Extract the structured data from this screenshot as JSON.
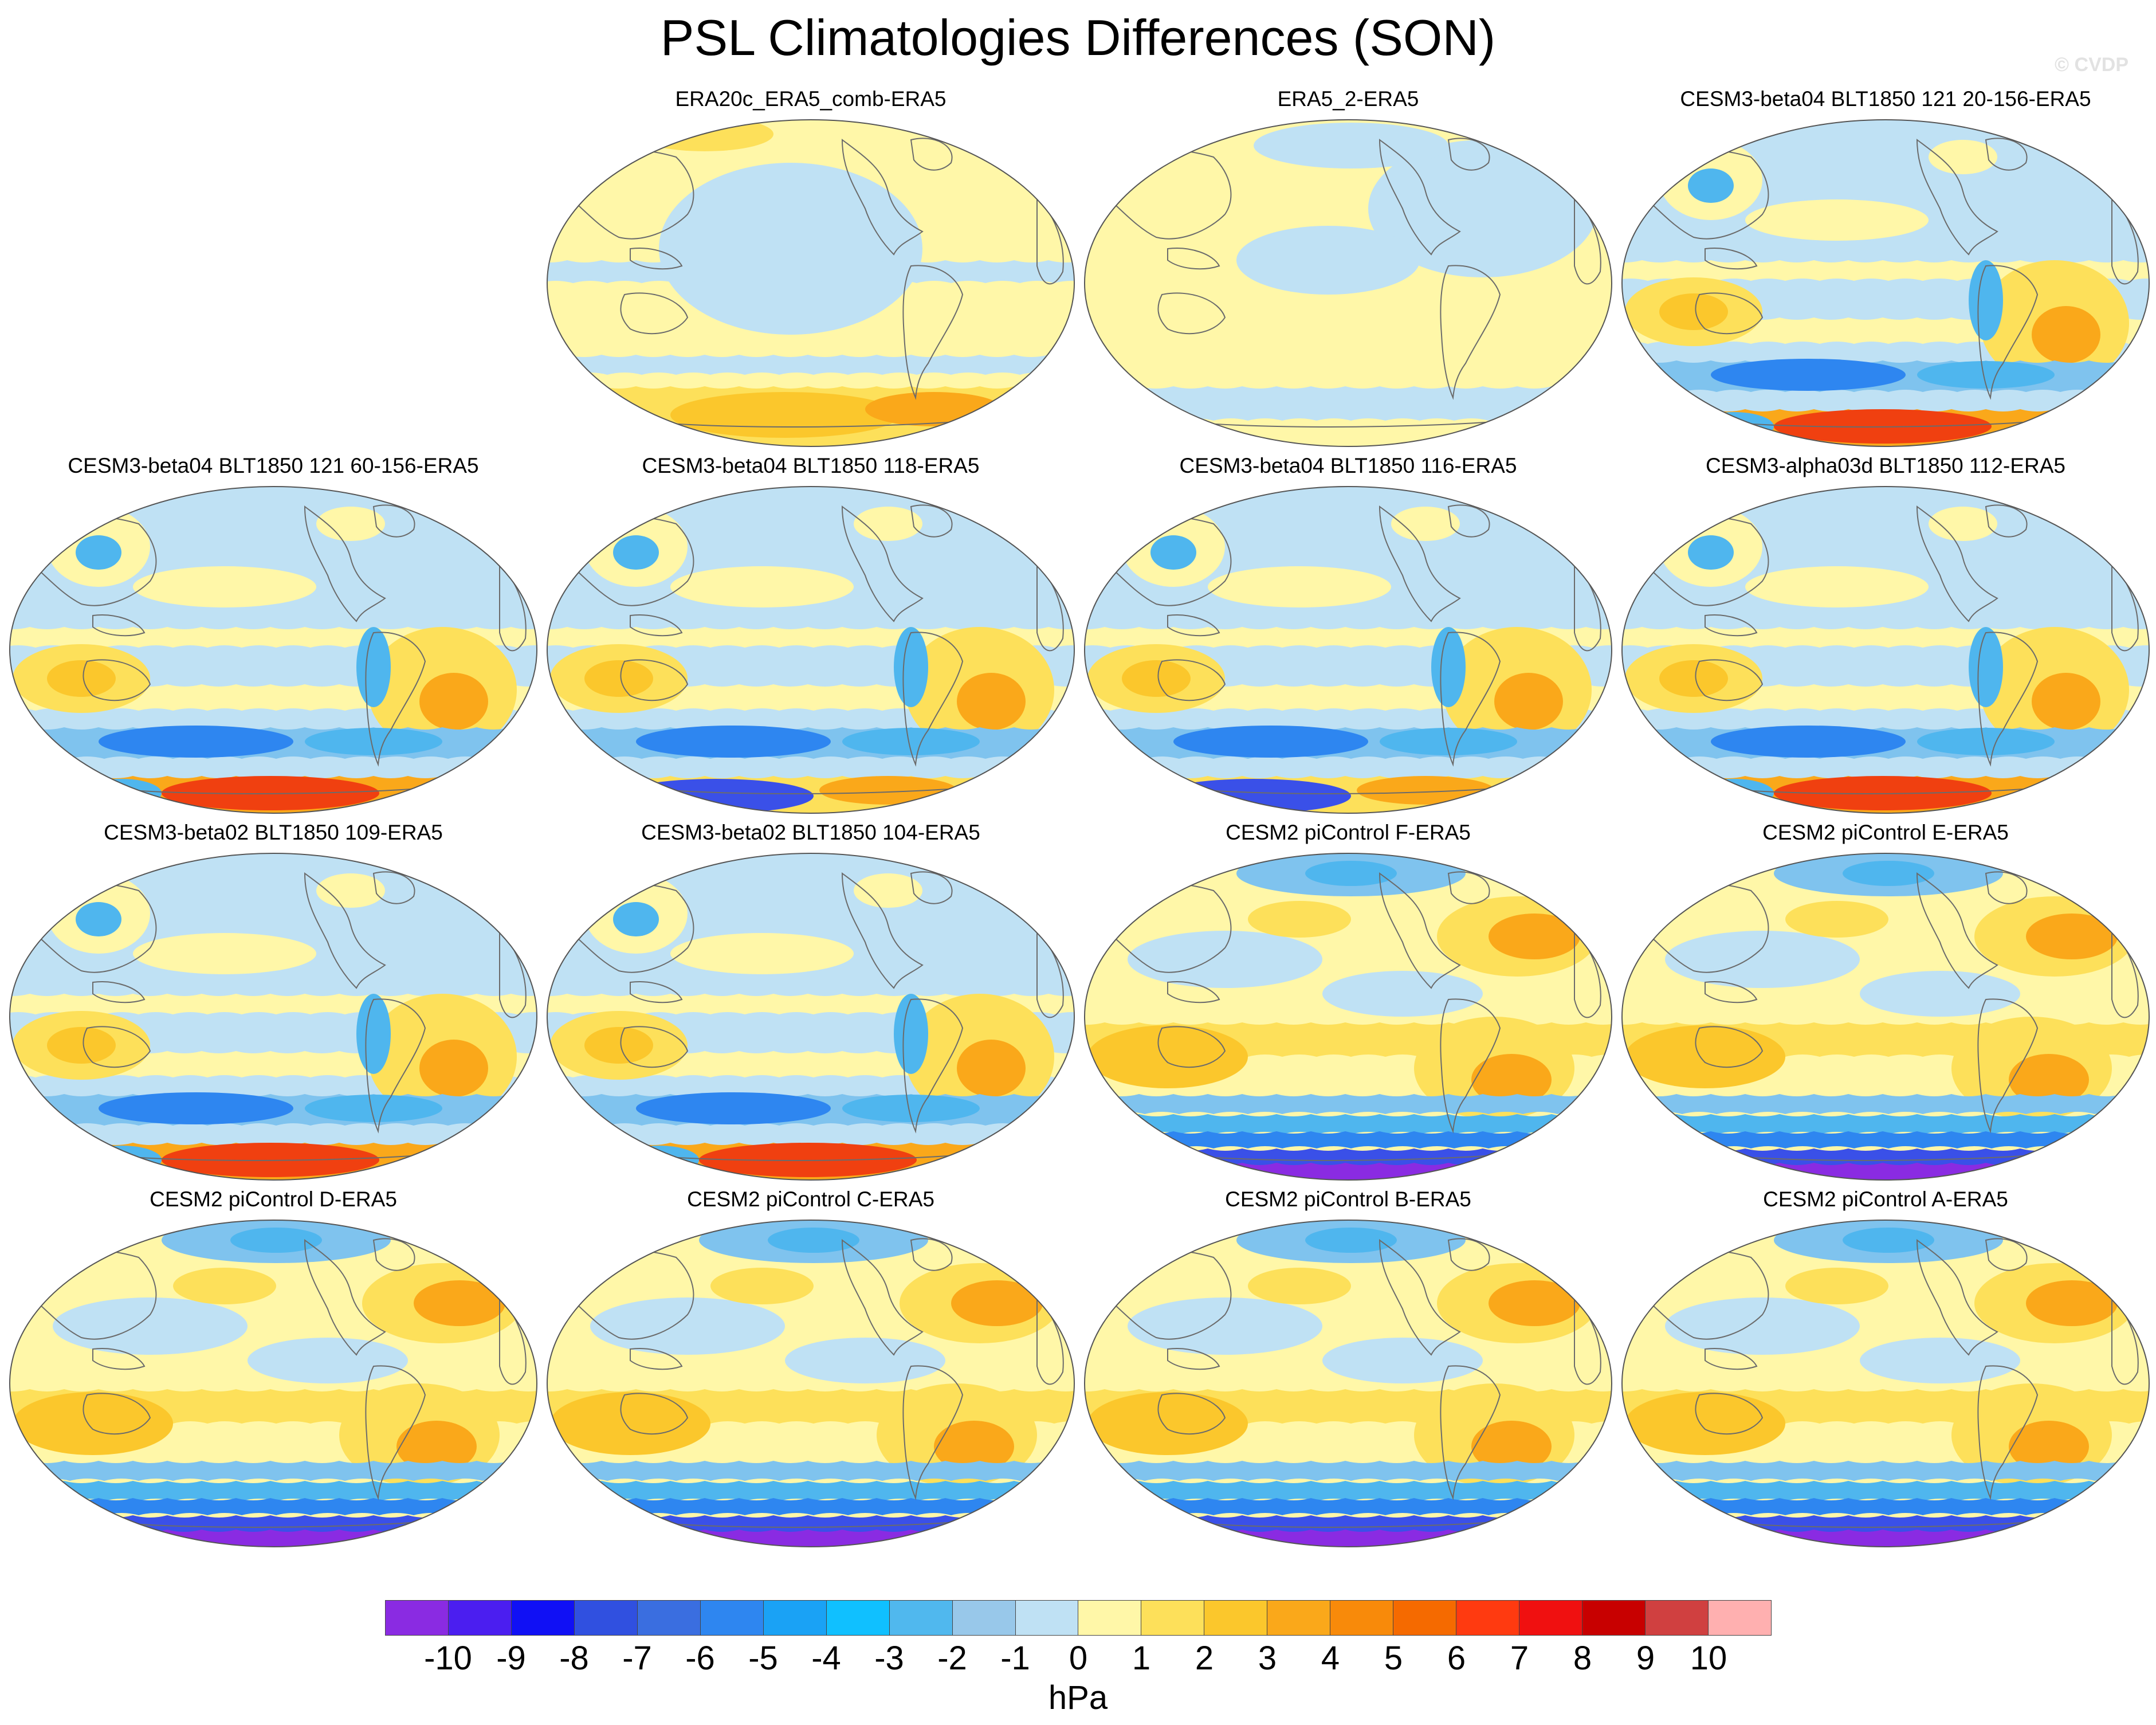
{
  "figure": {
    "title": "PSL Climatologies Differences (SON)",
    "watermark": "© CVDP",
    "units": "hPa"
  },
  "panels": [
    {
      "title": "ERA20c_ERA5_comb-ERA5",
      "pattern": "era20c"
    },
    {
      "title": "ERA5_2-ERA5",
      "pattern": "era5"
    },
    {
      "title": "CESM3-beta04 BLT1850 121 20-156-ERA5",
      "pattern": "cesm3"
    },
    {
      "title": "CESM3-beta04 BLT1850 121 60-156-ERA5",
      "pattern": "cesm3"
    },
    {
      "title": "CESM3-beta04 BLT1850 118-ERA5",
      "pattern": "cesm3b"
    },
    {
      "title": "CESM3-beta04 BLT1850 116-ERA5",
      "pattern": "cesm3b"
    },
    {
      "title": "CESM3-alpha03d BLT1850 112-ERA5",
      "pattern": "cesm3"
    },
    {
      "title": "CESM3-beta02 BLT1850 109-ERA5",
      "pattern": "cesm3"
    },
    {
      "title": "CESM3-beta02 BLT1850 104-ERA5",
      "pattern": "cesm3"
    },
    {
      "title": "CESM2 piControl F-ERA5",
      "pattern": "cesm2"
    },
    {
      "title": "CESM2 piControl E-ERA5",
      "pattern": "cesm2"
    },
    {
      "title": "CESM2 piControl D-ERA5",
      "pattern": "cesm2"
    },
    {
      "title": "CESM2 piControl C-ERA5",
      "pattern": "cesm2"
    },
    {
      "title": "CESM2 piControl B-ERA5",
      "pattern": "cesm2"
    },
    {
      "title": "CESM2 piControl A-ERA5",
      "pattern": "cesm2"
    }
  ],
  "colorbar": {
    "colors": [
      "#8a2be2",
      "#4b1ef0",
      "#1010f5",
      "#3050e0",
      "#3a6ee0",
      "#2e86f0",
      "#1aa2f5",
      "#10c0ff",
      "#50b8ee",
      "#98c8ea",
      "#bfe1f4",
      "#fff7a8",
      "#fde05a",
      "#fbc72c",
      "#faa81a",
      "#f88a0a",
      "#f56a00",
      "#ff3a10",
      "#f01010",
      "#c80000",
      "#d04040",
      "#ffb0b0"
    ],
    "labels": [
      "-10",
      "-9",
      "-8",
      "-7",
      "-6",
      "-5",
      "-4",
      "-3",
      "-2",
      "-1",
      "0",
      "1",
      "2",
      "3",
      "4",
      "5",
      "6",
      "7",
      "8",
      "9",
      "10"
    ]
  }
}
